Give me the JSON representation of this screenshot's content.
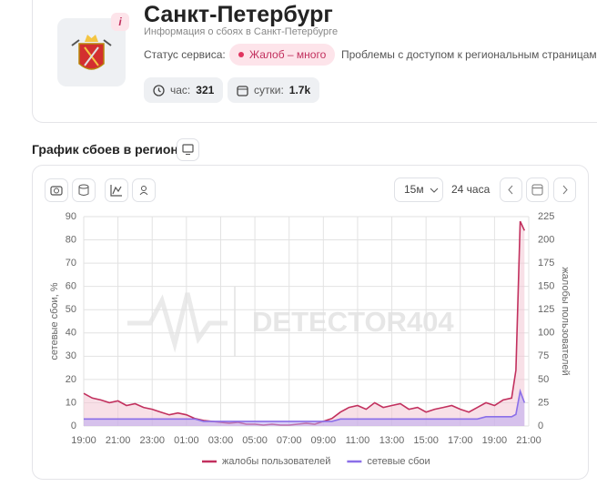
{
  "header": {
    "title": "Санкт-Петербург",
    "subtitle": "Информация о сбоях в Санкт-Петербурге",
    "info_badge": "i",
    "status_label": "Статус сервиса:",
    "status_badge": "Жалоб – много",
    "status_note": "Проблемы с доступом к региональным страницам",
    "stats": [
      {
        "label": "час:",
        "value": 321
      },
      {
        "label": "сутки:",
        "value": "1.7k"
      }
    ]
  },
  "section_title": "График сбоев в регионе",
  "toolbar": {
    "interval": "15м",
    "range": "24 часа"
  },
  "chart_data": {
    "type": "line",
    "y_label": "сетевые сбои, %",
    "y2_label": "жалобы пользователей",
    "watermark": "DETECTOR404",
    "grid": true,
    "legend": "bottom",
    "xlim": [
      0,
      26
    ],
    "ylim": [
      0,
      90
    ],
    "y2lim": [
      0,
      225
    ],
    "xticks": [
      {
        "value": 0,
        "label": "19:00"
      },
      {
        "value": 2,
        "label": "21:00"
      },
      {
        "value": 4,
        "label": "23:00"
      },
      {
        "value": 6,
        "label": "01:00"
      },
      {
        "value": 8,
        "label": "03:00"
      },
      {
        "value": 10,
        "label": "05:00"
      },
      {
        "value": 12,
        "label": "07:00"
      },
      {
        "value": 14,
        "label": "09:00"
      },
      {
        "value": 16,
        "label": "11:00"
      },
      {
        "value": 18,
        "label": "13:00"
      },
      {
        "value": 20,
        "label": "15:00"
      },
      {
        "value": 22,
        "label": "17:00"
      },
      {
        "value": 24,
        "label": "19:00"
      },
      {
        "value": 26,
        "label": "21:00"
      }
    ],
    "yticks": [
      0,
      10,
      20,
      30,
      40,
      50,
      60,
      70,
      80,
      90
    ],
    "y2ticks": [
      0,
      25,
      50,
      75,
      100,
      125,
      150,
      175,
      200,
      225
    ],
    "x": [
      0,
      0.5,
      1,
      1.5,
      2,
      2.5,
      3,
      3.5,
      4,
      4.5,
      5,
      5.5,
      6,
      6.5,
      7,
      7.5,
      8,
      8.5,
      9,
      9.5,
      10,
      10.5,
      11,
      11.5,
      12,
      12.5,
      13,
      13.5,
      14,
      14.5,
      15,
      15.5,
      16,
      16.5,
      17,
      17.5,
      18,
      18.5,
      19,
      19.5,
      20,
      20.5,
      21,
      21.5,
      22,
      22.5,
      23,
      23.5,
      24,
      24.5,
      25,
      25.25,
      25.5,
      25.75
    ],
    "series": [
      {
        "name": "жалобы пользователей",
        "color": "#c2305e",
        "fill": "#f3c6d4",
        "axis": "y2",
        "values": [
          35,
          30,
          28,
          25,
          27,
          22,
          24,
          20,
          18,
          15,
          12,
          14,
          12,
          8,
          6,
          5,
          4,
          3,
          4,
          2,
          2,
          1,
          2,
          1,
          1,
          2,
          3,
          2,
          5,
          8,
          15,
          20,
          22,
          18,
          25,
          20,
          22,
          24,
          18,
          20,
          15,
          18,
          20,
          22,
          18,
          15,
          20,
          25,
          22,
          28,
          30,
          60,
          220,
          210
        ]
      },
      {
        "name": "сетевые сбои",
        "color": "#8b6fe8",
        "fill": "#b9a8f0",
        "axis": "y",
        "values": [
          3,
          3,
          3,
          3,
          3,
          3,
          3,
          3,
          3,
          3,
          3,
          3,
          3,
          3,
          2,
          2,
          2,
          2,
          2,
          2,
          2,
          2,
          2,
          2,
          2,
          2,
          2,
          2,
          2,
          2,
          3,
          3,
          3,
          3,
          3,
          3,
          3,
          3,
          3,
          3,
          3,
          3,
          3,
          3,
          3,
          3,
          3,
          4,
          4,
          4,
          4,
          5,
          15,
          10
        ]
      }
    ]
  }
}
